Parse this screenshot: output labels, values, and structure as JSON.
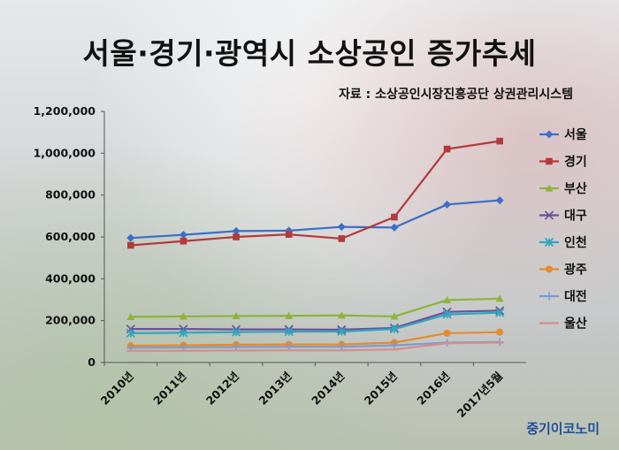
{
  "header": {
    "title": "서울·경기·광역시 소상공인 증가추세",
    "source": "자료 : 소상공인시장진흥공단 상권관리시스템"
  },
  "brand": "중기이코노미",
  "chart_data": {
    "type": "line",
    "categories": [
      "2010년",
      "2011년",
      "2012년",
      "2013년",
      "2014년",
      "2015년",
      "2016년",
      "2017년5월"
    ],
    "ylim": [
      0,
      1200000
    ],
    "yticks": [
      0,
      200000,
      400000,
      600000,
      800000,
      1000000,
      1200000
    ],
    "ytick_labels": [
      "0",
      "200,000",
      "400,000",
      "600,000",
      "800,000",
      "1,000,000",
      "1,200,000"
    ],
    "legend_position": "right",
    "series": [
      {
        "name": "서울",
        "color": "#3a6ec9",
        "marker": "diamond",
        "values": [
          595000,
          610000,
          628000,
          630000,
          648000,
          645000,
          755000,
          775000
        ]
      },
      {
        "name": "경기",
        "color": "#b3393a",
        "marker": "square",
        "values": [
          560000,
          580000,
          600000,
          612000,
          592000,
          695000,
          1020000,
          1058000
        ]
      },
      {
        "name": "부산",
        "color": "#8db33c",
        "marker": "triangle",
        "values": [
          218000,
          220000,
          222000,
          223000,
          225000,
          220000,
          298000,
          305000
        ]
      },
      {
        "name": "대구",
        "color": "#6b4f9c",
        "marker": "x",
        "values": [
          160000,
          160000,
          158000,
          158000,
          157000,
          165000,
          242000,
          248000
        ]
      },
      {
        "name": "인천",
        "color": "#2fa6bd",
        "marker": "asterisk",
        "values": [
          140000,
          142000,
          145000,
          147000,
          148000,
          160000,
          230000,
          238000
        ]
      },
      {
        "name": "광주",
        "color": "#e58a2e",
        "marker": "circle",
        "values": [
          80000,
          82000,
          85000,
          86000,
          86000,
          95000,
          140000,
          145000
        ]
      },
      {
        "name": "대전",
        "color": "#7b9bd1",
        "marker": "plus",
        "values": [
          70000,
          72000,
          74000,
          75000,
          75000,
          82000,
          95000,
          98000
        ]
      },
      {
        "name": "울산",
        "color": "#d98c8c",
        "marker": "dash",
        "values": [
          55000,
          56000,
          57000,
          58000,
          58000,
          62000,
          92000,
          95000
        ]
      }
    ]
  }
}
